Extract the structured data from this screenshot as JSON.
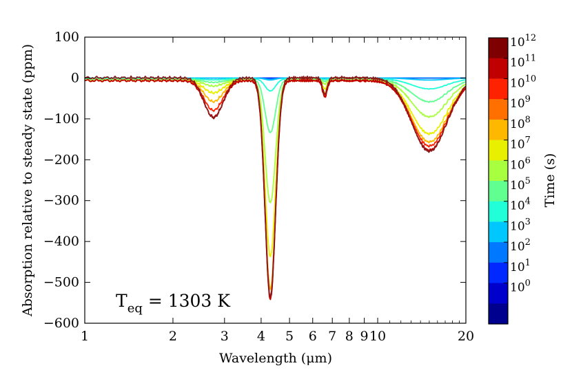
{
  "chart_data": {
    "type": "line",
    "xlabel": "Wavelength (μm)",
    "ylabel": "Absorption relative to steady state (ppm)",
    "xscale": "log",
    "xlim": [
      1,
      20
    ],
    "ylim": [
      -600,
      100
    ],
    "x_ticks": [
      {
        "value": 1,
        "label": "1"
      },
      {
        "value": 2,
        "label": "2"
      },
      {
        "value": 3,
        "label": "3"
      },
      {
        "value": 4,
        "label": "4"
      },
      {
        "value": 5,
        "label": "5"
      },
      {
        "value": 6,
        "label": "6"
      },
      {
        "value": 7,
        "label": "7"
      },
      {
        "value": 8,
        "label": "8"
      },
      {
        "value": 9,
        "label": "9"
      },
      {
        "value": 10,
        "label": "10"
      },
      {
        "value": 20,
        "label": "20"
      }
    ],
    "y_ticks": [
      {
        "value": 100,
        "label": "100"
      },
      {
        "value": 0,
        "label": "0"
      },
      {
        "value": -100,
        "label": "−100"
      },
      {
        "value": -200,
        "label": "−200"
      },
      {
        "value": -300,
        "label": "−300"
      },
      {
        "value": -400,
        "label": "−400"
      },
      {
        "value": -500,
        "label": "−500"
      },
      {
        "value": -600,
        "label": "−600"
      }
    ],
    "annotation": {
      "base": "T",
      "subscript": "eq",
      "rest": " = 1303 K"
    },
    "colorbar": {
      "label": "Time (s)",
      "labels": [
        {
          "base": "10",
          "exp": "12"
        },
        {
          "base": "10",
          "exp": "11"
        },
        {
          "base": "10",
          "exp": "10"
        },
        {
          "base": "10",
          "exp": "9"
        },
        {
          "base": "10",
          "exp": "8"
        },
        {
          "base": "10",
          "exp": "7"
        },
        {
          "base": "10",
          "exp": "6"
        },
        {
          "base": "10",
          "exp": "5"
        },
        {
          "base": "10",
          "exp": "4"
        },
        {
          "base": "10",
          "exp": "3"
        },
        {
          "base": "10",
          "exp": "2"
        },
        {
          "base": "10",
          "exp": "1"
        },
        {
          "base": "10",
          "exp": "0"
        }
      ],
      "colors": [
        "#7f0000",
        "#c00000",
        "#ff2200",
        "#ff7000",
        "#ffb800",
        "#e8f000",
        "#a8ff40",
        "#60ff90",
        "#20ffd8",
        "#00c8ff",
        "#0078ff",
        "#0028ff",
        "#0000cc",
        "#00008f"
      ]
    },
    "features": [
      {
        "center_um": 2.7,
        "depths": [
          0,
          0,
          0,
          0,
          0,
          2,
          5,
          10,
          20,
          35,
          50,
          60,
          65
        ],
        "width": 0.03
      },
      {
        "center_um": 2.85,
        "depths": [
          0,
          0,
          0,
          0,
          0,
          1,
          3,
          6,
          12,
          20,
          28,
          35,
          40
        ],
        "width": 0.03
      },
      {
        "center_um": 4.3,
        "depths": [
          0,
          0,
          0,
          2,
          5,
          30,
          130,
          300,
          430,
          510,
          530,
          535,
          535
        ],
        "width": 0.018
      },
      {
        "center_um": 6.6,
        "depths": [
          0,
          0,
          0,
          0,
          0,
          2,
          5,
          10,
          20,
          30,
          35,
          40,
          40
        ],
        "width": 0.008
      },
      {
        "center_um": 15.0,
        "depths": [
          0,
          0,
          0,
          0,
          5,
          25,
          55,
          90,
          130,
          150,
          160,
          170,
          180
        ],
        "width": 0.06
      }
    ],
    "series": [
      {
        "name": "t = 1e0 s",
        "time_exp": 0,
        "color": "#00008f"
      },
      {
        "name": "t = 1e1 s",
        "time_exp": 1,
        "color": "#0000cc"
      },
      {
        "name": "t = 1e2 s",
        "time_exp": 2,
        "color": "#0028ff"
      },
      {
        "name": "t = 1e3 s",
        "time_exp": 3,
        "color": "#0078ff"
      },
      {
        "name": "t = 1e4 s",
        "time_exp": 4,
        "color": "#00c8ff"
      },
      {
        "name": "t = 1e5 s",
        "time_exp": 5,
        "color": "#20ffd8"
      },
      {
        "name": "t = 1e6 s",
        "time_exp": 6,
        "color": "#60ff90"
      },
      {
        "name": "t = 1e7 s",
        "time_exp": 7,
        "color": "#a8ff40"
      },
      {
        "name": "t = 1e8 s",
        "time_exp": 8,
        "color": "#e8f000"
      },
      {
        "name": "t = 1e9 s",
        "time_exp": 9,
        "color": "#ffb800"
      },
      {
        "name": "t = 1e10 s",
        "time_exp": 10,
        "color": "#ff2200"
      },
      {
        "name": "t = 1e11 s",
        "time_exp": 11,
        "color": "#c00000"
      },
      {
        "name": "t = 1e12 s",
        "time_exp": 12,
        "color": "#8b1a1a"
      }
    ]
  }
}
